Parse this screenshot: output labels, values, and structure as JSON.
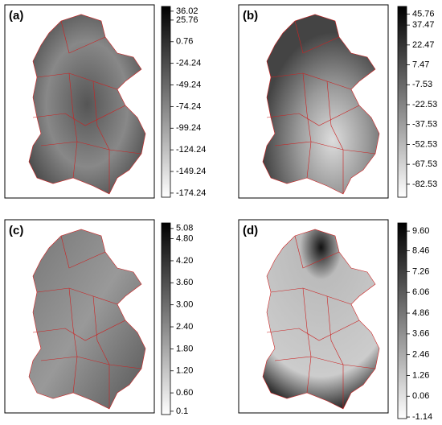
{
  "panels": [
    {
      "label": "(a)",
      "clim": [
        -179,
        41.5
      ],
      "ticks": [
        36.02,
        25.76,
        0.76,
        -24.24,
        -49.24,
        -74.24,
        -99.24,
        -124.24,
        -149.24,
        -174.24
      ]
    },
    {
      "label": "(b)",
      "clim": [
        -92.3,
        51.5
      ],
      "ticks": [
        45.76,
        37.47,
        22.47,
        7.47,
        -7.53,
        -22.53,
        -37.53,
        -52.53,
        -67.53,
        -82.53
      ]
    },
    {
      "label": "(c)",
      "clim": [
        0.01,
        5.23
      ],
      "ticks": [
        5.08,
        {
          "value": 4.8,
          "label": "4.80"
        },
        {
          "value": 4.2,
          "label": "4.20"
        },
        {
          "value": 3.6,
          "label": "3.60"
        },
        {
          "value": 3,
          "label": "3.00"
        },
        {
          "value": 2.4,
          "label": "2.40"
        },
        {
          "value": 1.8,
          "label": "1.80"
        },
        {
          "value": 1.2,
          "label": "1.20"
        },
        {
          "value": 0.6,
          "label": "0.60"
        },
        0.1
      ]
    },
    {
      "label": "(d)",
      "clim": [
        -1.23,
        10.07
      ],
      "ticks": [
        {
          "value": 9.6,
          "label": "9.60"
        },
        8.46,
        7.26,
        6.06,
        4.86,
        3.66,
        2.46,
        1.26,
        0.06,
        -1.14
      ]
    }
  ]
}
